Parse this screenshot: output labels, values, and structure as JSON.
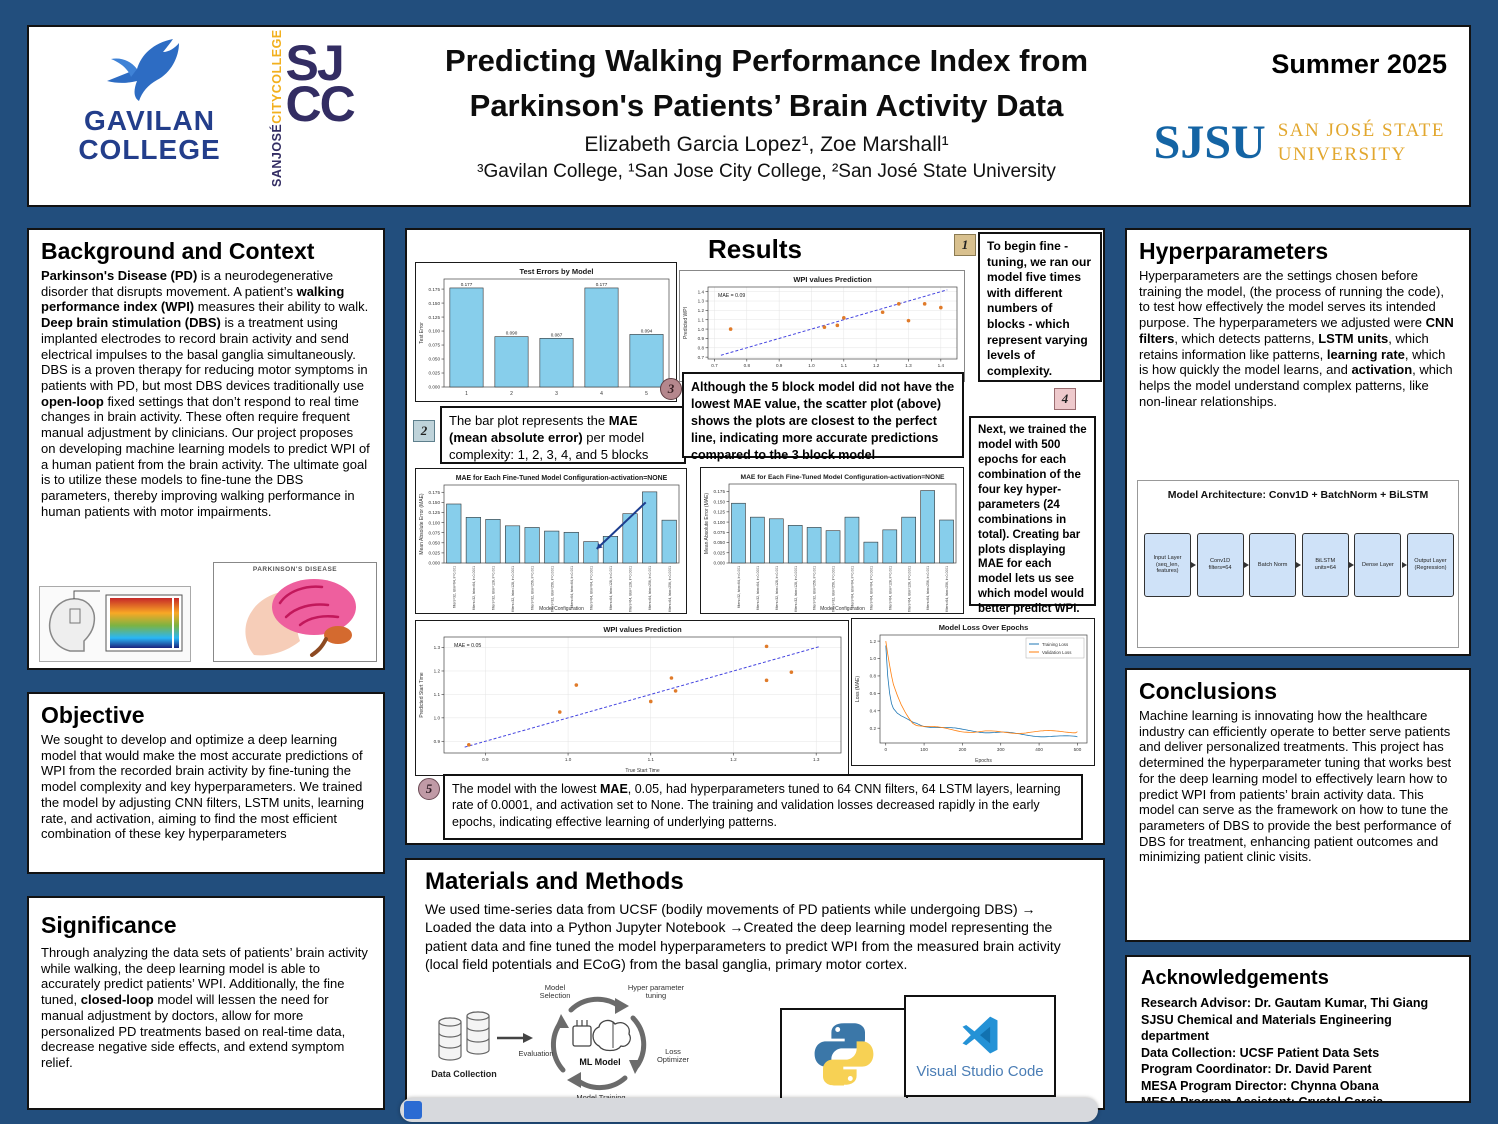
{
  "poster": {
    "term": "Summer 2025",
    "title_line1": "Predicting Walking Performance Index from",
    "title_line2": "Parkinson's Patients’ Brain Activity Data",
    "authors": "Elizabeth Garcia Lopez¹, Zoe Marshall¹",
    "affiliations": "³Gavilan College, ¹San Jose City College, ²San José State University"
  },
  "logos": {
    "gavilan_line1": "GAVILAN",
    "gavilan_line2": "COLLEGE",
    "sjcc_part1": "SANJOSÉ",
    "sjcc_part2": "CITYCOLLEGE",
    "sjcc_big1": "SJ",
    "sjcc_big2": "CC",
    "sjsu_acronym": "SJSU",
    "sjsu_line1": "SAN JOSÉ STATE",
    "sjsu_line2": "UNIVERSITY"
  },
  "background": {
    "title": "Background and Context",
    "segments": [
      {
        "t": "Parkinson's Disease (PD)",
        "b": true
      },
      {
        "t": " is a neurodegenerative disorder that disrupts movement. A patient’s "
      },
      {
        "t": "walking performance index (WPI)",
        "b": true
      },
      {
        "t": " measures their ability to walk. "
      },
      {
        "t": "Deep brain stimulation (DBS)",
        "b": true
      },
      {
        "t": " is a treatment using implanted electrodes to record brain activity and send electrical impulses to the basal ganglia simultaneously. DBS is a proven therapy for reducing motor symptoms in patients with PD, but most DBS devices traditionally use "
      },
      {
        "t": "open-loop",
        "b": true
      },
      {
        "t": " fixed settings that don’t respond to real time changes in brain activity. These often require frequent manual adjustment by clinicians. Our project proposes on developing machine learning models to predict WPI of a human patient from the brain activity. The ultimate goal is to utilize these models to fine-tune the DBS parameters, thereby improving walking performance in human patients with motor impairments."
      }
    ],
    "parkinsons_label": "PARKINSON'S DISEASE"
  },
  "objective": {
    "title": "Objective",
    "text": "We sought to develop and optimize a deep learning model that would make the most accurate predictions of WPI from the recorded brain activity by fine-tuning the model complexity and key hyperparameters. We trained the model by adjusting CNN filters, LSTM units, learning rate, and activation, aiming to find the most efficient combination of these key hyperparameters"
  },
  "significance": {
    "title": "Significance",
    "segments": [
      {
        "t": "Through analyzing the data sets of patients’ brain activity while walking, the deep learning model is able to accurately predict patients’ WPI. Additionally, the fine tuned, "
      },
      {
        "t": "closed-loop",
        "b": true
      },
      {
        "t": " model will lessen the need for manual adjustment by doctors, allow for more personalized PD treatments based on real-time data, decrease negative side effects, and extend symptom relief."
      }
    ]
  },
  "results": {
    "title": "Results",
    "callouts": [
      {
        "n": "1",
        "segments": [
          {
            "t": "To begin fine - tuning, we ran our model five times with different numbers of blocks - which represent varying levels of complexity."
          }
        ]
      },
      {
        "n": "2",
        "segments": [
          {
            "t": "The bar plot represents the "
          },
          {
            "t": "MAE (mean absolute error)",
            "b": true
          },
          {
            "t": " per model complexity: 1, 2,  3, 4, and 5 blocks"
          }
        ]
      },
      {
        "n": "3",
        "segments": [
          {
            "t": "Although the 5 block model did not have the lowest "
          },
          {
            "t": "MAE",
            "b": true
          },
          {
            "t": " value, the scatter plot (above) shows the plots are closest to the perfect line, indicating more accurate predictions compared to the 3 block model"
          }
        ]
      },
      {
        "n": "4",
        "segments": [
          {
            "t": "Next, we trained the model with 500 epochs for each combination of the four key hyper-parameters (24 combinations in total). Creating bar plots displaying "
          },
          {
            "t": "MAE",
            "b": true
          },
          {
            "t": " for each model lets us see which model would better predict WPI."
          }
        ]
      },
      {
        "n": "5",
        "segments": [
          {
            "t": "The model with the lowest "
          },
          {
            "t": "MAE",
            "b": true
          },
          {
            "t": ", 0.05, had hyperparameters tuned to 64 CNN filters, 64 LSTM layers, learning rate of 0.0001, and activation set to None. The training and validation losses decreased rapidly in the early epochs, indicating effective learning of underlying patterns."
          }
        ]
      }
    ]
  },
  "materials": {
    "title": "Materials and Methods",
    "text": "We used time-series data from UCSF (bodily movements of PD patients while undergoing DBS) → Loaded the data into a Python Jupyter Notebook →Created the deep learning model representing the patient data and fine tuned the model hyperparameters to predict WPI from the measured brain activity (local field potentials and ECoG) from the basal ganglia, primary motor cortex.",
    "pipeline": {
      "data_collection": "Data Collection",
      "model_selection": "Model Selection",
      "hyper_tuning": "Hyper parameter tuning",
      "loss_optimizer": "Loss Optimizer",
      "model_training": "Model Training",
      "evaluation": "Evaluation",
      "ml_model": "ML Model"
    },
    "vscode_label": "Visual Studio Code"
  },
  "hyperparameters": {
    "title": "Hyperparameters",
    "segments": [
      {
        "t": "Hyperparameters are the settings chosen before training the model, (the process of running the code), to test how effectively the model serves its intended purpose. The hyperparameters we adjusted were "
      },
      {
        "t": "CNN filters",
        "b": true
      },
      {
        "t": ", which detects patterns, "
      },
      {
        "t": "LSTM units",
        "b": true
      },
      {
        "t": ", which retains information like patterns, "
      },
      {
        "t": "learning rate",
        "b": true
      },
      {
        "t": ", which is how quickly the model learns, and "
      },
      {
        "t": "activation",
        "b": true
      },
      {
        "t": ", which helps the model understand complex patterns, like non-linear relationships."
      }
    ],
    "architecture": {
      "title": "Model Architecture: Conv1D + BatchNorm + BiLSTM",
      "layers": [
        [
          "Input Layer",
          "(seq_len, features)"
        ],
        [
          "Conv1D",
          "filters=64"
        ],
        [
          "Batch Norm",
          ""
        ],
        [
          "BiLSTM",
          "units=64"
        ],
        [
          "Dense Layer",
          ""
        ],
        [
          "Output Layer",
          "(Regression)"
        ]
      ]
    }
  },
  "conclusions": {
    "title": "Conclusions",
    "text": "Machine learning is innovating how the healthcare industry can efficiently operate to better serve patients and deliver personalized treatments. This project has determined the hyperparameter tuning that works best for the deep learning model to effectively learn how to predict WPI from patients’ brain activity data. This model can serve as the framework on how to tune the parameters of DBS to provide the best performance of DBS for treatment, enhancing patient outcomes and minimizing patient clinic visits."
  },
  "acknowledgements": {
    "title": "Acknowledgements",
    "lines": [
      "Research Advisor: Dr.  Gautam Kumar, Thi Giang",
      "SJSU Chemical and Materials Engineering department",
      "Data Collection: UCSF Patient Data Sets",
      "Program Coordinator: Dr. David Parent",
      "MESA Program Director: Chynna Obana",
      "MESA Program Assistant: Crystal Garcia"
    ]
  },
  "colors": {
    "poster_background": "#224e7d",
    "bar_fill": "#87ceeb",
    "scatter_point": "#e07b2a",
    "prediction_line": "#4444e0",
    "training_loss": "#1f77b4",
    "validation_loss": "#ff7f0e",
    "sjsu_blue": "#1464a4",
    "sjsu_gold": "#e2a72e",
    "gavilan_blue": "#233e8b",
    "sjcc_navy": "#332d63",
    "sjcc_gold": "#f2b01e"
  },
  "chart_data": [
    {
      "type": "bar",
      "title": "Test Errors by Model",
      "ylabel": "Test Error",
      "xlabel": "",
      "categories": [
        "1",
        "2",
        "3",
        "4",
        "5"
      ],
      "values": [
        0.177,
        0.09,
        0.087,
        0.177,
        0.094
      ],
      "bar_labels": [
        "0.177",
        "0.090",
        "0.087",
        "0.177",
        "0.094"
      ],
      "ylim": [
        0,
        0.193
      ],
      "yticks": [
        0.0,
        0.025,
        0.05,
        0.075,
        0.1,
        0.125,
        0.15,
        0.175
      ],
      "ytick_dec": 3,
      "bar_color": "#87ceeb",
      "grid": false
    },
    {
      "type": "scatter",
      "title": "WPI values Prediction",
      "xlabel": "True WPI",
      "ylabel": "Predicted WPI",
      "annotation": "MAE = 0.09",
      "xlim": [
        0.68,
        1.45
      ],
      "ylim": [
        0.68,
        1.45
      ],
      "xticks": [
        0.7,
        0.8,
        0.9,
        1.0,
        1.1,
        1.2,
        1.3,
        1.4
      ],
      "yticks": [
        0.7,
        0.8,
        0.9,
        1.0,
        1.1,
        1.2,
        1.3,
        1.4
      ],
      "ytick_dec": 1,
      "xtick_dec": 1,
      "points": [
        [
          0.75,
          1.0
        ],
        [
          1.04,
          1.02
        ],
        [
          1.08,
          1.04
        ],
        [
          1.1,
          1.12
        ],
        [
          1.22,
          1.18
        ],
        [
          1.27,
          1.27
        ],
        [
          1.3,
          1.09
        ],
        [
          1.35,
          1.27
        ],
        [
          1.4,
          1.23
        ]
      ],
      "line": [
        [
          0.72,
          0.72
        ],
        [
          1.42,
          1.42
        ]
      ],
      "point_color": "#e07b2a",
      "line_color": "#4444e0",
      "grid": true
    },
    {
      "type": "bar",
      "title": "MAE for Each Fine-Tuned Model Configuration-activation=NONE",
      "ylabel": "Mean Absolute Error (MAE)",
      "xlabel": "Model Configuration",
      "categories": [
        "filters=32, lstm=64, lr=0.001",
        "filters=32, lstm=64, lr=0.0001",
        "filters=32, lstm=128, lr=0.001",
        "filters=32, lstm=128, lr=0.0001",
        "filters=32, lstm=256, lr=0.001",
        "filters=32, lstm=256, lr=0.0001",
        "filters=64, lstm=64, lr=0.001",
        "filters=64, lstm=64, lr=0.0001",
        "filters=64, lstm=128, lr=0.001",
        "filters=64, lstm=128, lr=0.0001",
        "filters=64, lstm=256, lr=0.001",
        "filters=64, lstm=256, lr=0.0001"
      ],
      "values": [
        0.146,
        0.113,
        0.108,
        0.092,
        0.088,
        0.079,
        0.076,
        0.053,
        0.066,
        0.122,
        0.176,
        0.106
      ],
      "ylim": [
        0,
        0.193
      ],
      "yticks": [
        0.0,
        0.025,
        0.05,
        0.075,
        0.1,
        0.125,
        0.15,
        0.175
      ],
      "ytick_dec": 3,
      "rotate_labels": true,
      "bar_color": "#87ceeb",
      "arrow": {
        "from": [
          10.3,
          0.15
        ],
        "to": [
          7.8,
          0.035
        ]
      },
      "grid": false
    },
    {
      "type": "bar",
      "title": "MAE for Each Fine-Tuned Model Configuration-activation=NONE",
      "ylabel": "Mean Absolute Error (MAE)",
      "xlabel": "Model Configuration",
      "categories": [
        "filters=32, lstm=64, lr=0.001",
        "filters=32, lstm=64, lr=0.0001",
        "filters=32, lstm=128, lr=0.001",
        "filters=32, lstm=128, lr=0.0001",
        "filters=32, lstm=256, lr=0.001",
        "filters=32, lstm=256, lr=0.0001",
        "filters=64, lstm=64, lr=0.001",
        "filters=64, lstm=64, lr=0.0001",
        "filters=64, lstm=128, lr=0.001",
        "filters=64, lstm=128, lr=0.0001",
        "filters=64, lstm=256, lr=0.001",
        "filters=64, lstm=256, lr=0.0001"
      ],
      "values": [
        0.146,
        0.112,
        0.108,
        0.092,
        0.087,
        0.079,
        0.112,
        0.051,
        0.081,
        0.112,
        0.177,
        0.105
      ],
      "ylim": [
        0,
        0.193
      ],
      "yticks": [
        0.0,
        0.025,
        0.05,
        0.075,
        0.1,
        0.125,
        0.15,
        0.175
      ],
      "ytick_dec": 3,
      "rotate_labels": true,
      "bar_color": "#87ceeb",
      "grid": false
    },
    {
      "type": "scatter",
      "title": "WPI values Prediction",
      "xlabel": "True Start Time",
      "ylabel": "Predicted Start Time",
      "annotation": "MAE = 0.05",
      "xlim": [
        0.85,
        1.33
      ],
      "ylim": [
        0.85,
        1.345
      ],
      "xticks": [
        0.9,
        1.0,
        1.1,
        1.2,
        1.3
      ],
      "yticks": [
        0.9,
        1.0,
        1.1,
        1.2,
        1.3
      ],
      "ytick_dec": 1,
      "xtick_dec": 1,
      "points": [
        [
          0.88,
          0.885
        ],
        [
          0.99,
          1.025
        ],
        [
          1.01,
          1.14
        ],
        [
          1.1,
          1.07
        ],
        [
          1.125,
          1.17
        ],
        [
          1.13,
          1.115
        ],
        [
          1.24,
          1.305
        ],
        [
          1.24,
          1.16
        ],
        [
          1.27,
          1.195
        ]
      ],
      "line": [
        [
          0.875,
          0.875
        ],
        [
          1.305,
          1.305
        ]
      ],
      "point_color": "#e07b2a",
      "line_color": "#4444e0",
      "grid": true
    },
    {
      "type": "line",
      "title": "Model Loss Over Epochs",
      "xlabel": "Epochs",
      "ylabel": "Loss (MAE)",
      "xlim": [
        -15,
        525
      ],
      "ylim": [
        0.03,
        1.27
      ],
      "xticks": [
        0,
        100,
        200,
        300,
        400,
        500
      ],
      "yticks": [
        0.2,
        0.4,
        0.6,
        0.8,
        1.0,
        1.2
      ],
      "ytick_dec": 1,
      "xtick_dec": 0,
      "legend": true,
      "series": [
        {
          "name": "Training Loss",
          "color": "#1f77b4",
          "points": [
            [
              0,
              1.15
            ],
            [
              5,
              0.8
            ],
            [
              10,
              0.6
            ],
            [
              15,
              0.48
            ],
            [
              20,
              0.42
            ],
            [
              30,
              0.36
            ],
            [
              40,
              0.33
            ],
            [
              50,
              0.31
            ],
            [
              60,
              0.29
            ],
            [
              70,
              0.27
            ],
            [
              80,
              0.26
            ],
            [
              100,
              0.23
            ],
            [
              120,
              0.22
            ],
            [
              140,
              0.21
            ],
            [
              160,
              0.2
            ],
            [
              180,
              0.19
            ],
            [
              200,
              0.18
            ],
            [
              230,
              0.17
            ],
            [
              260,
              0.16
            ],
            [
              300,
              0.15
            ],
            [
              340,
              0.13
            ],
            [
              380,
              0.12
            ],
            [
              420,
              0.11
            ],
            [
              460,
              0.1
            ],
            [
              500,
              0.1
            ]
          ]
        },
        {
          "name": "Validation Loss",
          "color": "#ff7f0e",
          "points": [
            [
              0,
              1.2
            ],
            [
              5,
              1.05
            ],
            [
              10,
              0.92
            ],
            [
              15,
              0.8
            ],
            [
              20,
              0.7
            ],
            [
              30,
              0.58
            ],
            [
              40,
              0.48
            ],
            [
              50,
              0.4
            ],
            [
              60,
              0.33
            ],
            [
              70,
              0.27
            ],
            [
              80,
              0.24
            ],
            [
              100,
              0.22
            ],
            [
              120,
              0.21
            ],
            [
              140,
              0.2
            ],
            [
              160,
              0.19
            ],
            [
              180,
              0.18
            ],
            [
              200,
              0.17
            ],
            [
              230,
              0.16
            ],
            [
              260,
              0.16
            ],
            [
              300,
              0.15
            ],
            [
              340,
              0.15
            ],
            [
              380,
              0.16
            ],
            [
              420,
              0.16
            ],
            [
              460,
              0.16
            ],
            [
              500,
              0.16
            ]
          ]
        }
      ]
    }
  ]
}
